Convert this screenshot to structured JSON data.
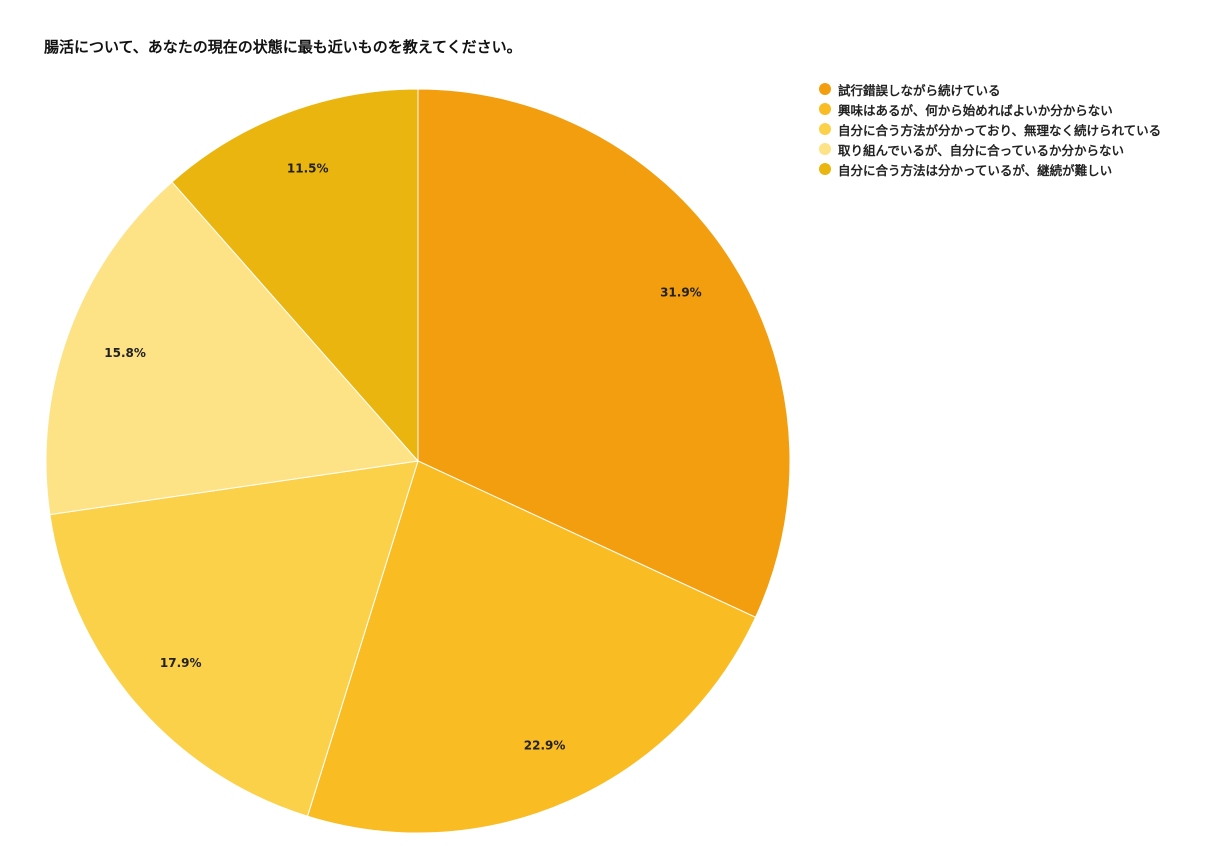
{
  "chart_data": {
    "type": "pie",
    "title": "腸活について、あなたの現在の状態に最も近いものを教えてください。",
    "legend_position": "top-right",
    "start_angle_deg": 0,
    "direction": "clockwise",
    "slices": [
      {
        "label": "試行錯誤しながら続けている",
        "value": 31.9,
        "value_label": "31.9%",
        "color": "#F29E0F"
      },
      {
        "label": "興味はあるが、何から始めればよいか分からない",
        "value": 22.9,
        "value_label": "22.9%",
        "color": "#F9BC22"
      },
      {
        "label": "自分に合う方法が分かっており、無理なく続けられている",
        "value": 17.9,
        "value_label": "17.9%",
        "color": "#FBD14A"
      },
      {
        "label": "取り組んでいるが、自分に合っているか分からない",
        "value": 15.8,
        "value_label": "15.8%",
        "color": "#FDE286"
      },
      {
        "label": "自分に合う方法は分かっているが、継続が難しい",
        "value": 11.5,
        "value_label": "11.5%",
        "color": "#EAB50F"
      }
    ]
  }
}
